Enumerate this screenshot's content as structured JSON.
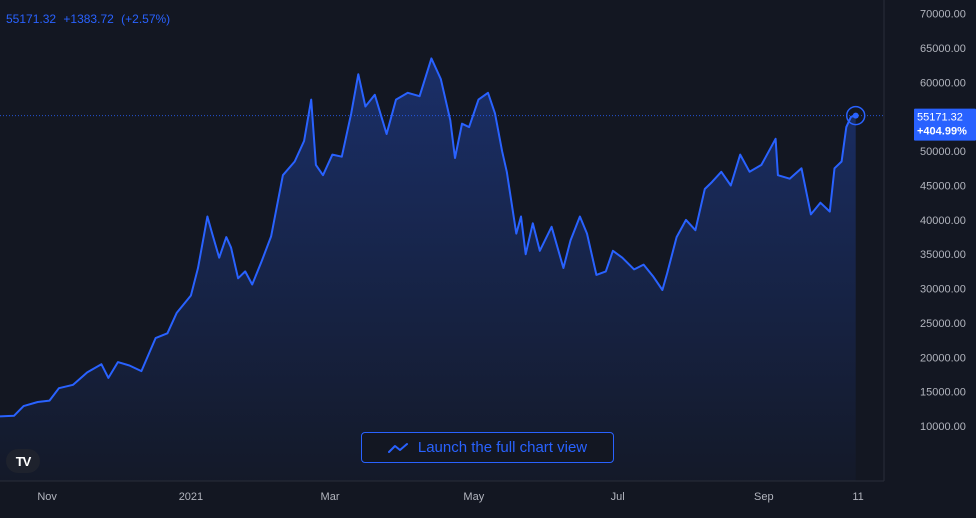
{
  "quote": {
    "price": "55171.32",
    "change": "+1383.72",
    "change_pct": "(+2.57%)"
  },
  "last_badge": {
    "price": "55171.32",
    "pct": "+404.99%"
  },
  "launch_label": "Launch the full chart view",
  "colors": {
    "line": "#2962ff",
    "background": "#131722",
    "text": "#b2b5be",
    "badge": "#2962ff"
  },
  "chart_data": {
    "type": "area",
    "title": "",
    "xlabel": "",
    "ylabel": "",
    "ylim": [
      2000,
      72000
    ],
    "y_ticks": [
      "70000.00",
      "65000.00",
      "60000.00",
      "55000.00",
      "50000.00",
      "45000.00",
      "40000.00",
      "35000.00",
      "30000.00",
      "25000.00",
      "20000.00",
      "15000.00",
      "10000.00"
    ],
    "y_tick_values": [
      70000,
      65000,
      60000,
      55000,
      50000,
      45000,
      40000,
      35000,
      30000,
      25000,
      20000,
      15000,
      10000
    ],
    "x_ticks": [
      "Nov",
      "2021",
      "Mar",
      "May",
      "Jul",
      "Sep",
      "11"
    ],
    "x_tick_dates": [
      "2020-11-01",
      "2021-01-01",
      "2021-03-01",
      "2021-05-01",
      "2021-07-01",
      "2021-09-01",
      "2021-10-11"
    ],
    "x_range": [
      "2020-10-12",
      "2021-10-22"
    ],
    "series": [
      {
        "points": [
          [
            "2020-10-12",
            11400
          ],
          [
            "2020-10-18",
            11500
          ],
          [
            "2020-10-22",
            12900
          ],
          [
            "2020-10-28",
            13500
          ],
          [
            "2020-11-02",
            13700
          ],
          [
            "2020-11-06",
            15500
          ],
          [
            "2020-11-12",
            16000
          ],
          [
            "2020-11-18",
            17800
          ],
          [
            "2020-11-24",
            19000
          ],
          [
            "2020-11-27",
            17000
          ],
          [
            "2020-12-01",
            19300
          ],
          [
            "2020-12-06",
            18800
          ],
          [
            "2020-12-11",
            18000
          ],
          [
            "2020-12-17",
            22800
          ],
          [
            "2020-12-22",
            23500
          ],
          [
            "2020-12-26",
            26500
          ],
          [
            "2021-01-01",
            29000
          ],
          [
            "2021-01-04",
            33000
          ],
          [
            "2021-01-08",
            40500
          ],
          [
            "2021-01-10",
            38000
          ],
          [
            "2021-01-13",
            34500
          ],
          [
            "2021-01-16",
            37500
          ],
          [
            "2021-01-18",
            36000
          ],
          [
            "2021-01-21",
            31500
          ],
          [
            "2021-01-24",
            32500
          ],
          [
            "2021-01-27",
            30600
          ],
          [
            "2021-01-31",
            34000
          ],
          [
            "2021-02-04",
            37600
          ],
          [
            "2021-02-09",
            46500
          ],
          [
            "2021-02-14",
            48500
          ],
          [
            "2021-02-18",
            51500
          ],
          [
            "2021-02-21",
            57500
          ],
          [
            "2021-02-23",
            48000
          ],
          [
            "2021-02-26",
            46500
          ],
          [
            "2021-03-02",
            49500
          ],
          [
            "2021-03-06",
            49200
          ],
          [
            "2021-03-10",
            55500
          ],
          [
            "2021-03-13",
            61200
          ],
          [
            "2021-03-16",
            56500
          ],
          [
            "2021-03-20",
            58200
          ],
          [
            "2021-03-25",
            52500
          ],
          [
            "2021-03-29",
            57500
          ],
          [
            "2021-04-03",
            58500
          ],
          [
            "2021-04-08",
            58000
          ],
          [
            "2021-04-13",
            63500
          ],
          [
            "2021-04-17",
            60500
          ],
          [
            "2021-04-21",
            54500
          ],
          [
            "2021-04-23",
            49000
          ],
          [
            "2021-04-26",
            54000
          ],
          [
            "2021-04-29",
            53500
          ],
          [
            "2021-05-03",
            57500
          ],
          [
            "2021-05-07",
            58500
          ],
          [
            "2021-05-10",
            55500
          ],
          [
            "2021-05-13",
            50000
          ],
          [
            "2021-05-15",
            47000
          ],
          [
            "2021-05-19",
            38000
          ],
          [
            "2021-05-21",
            40500
          ],
          [
            "2021-05-23",
            35000
          ],
          [
            "2021-05-26",
            39500
          ],
          [
            "2021-05-29",
            35500
          ],
          [
            "2021-06-03",
            39000
          ],
          [
            "2021-06-08",
            33000
          ],
          [
            "2021-06-11",
            37000
          ],
          [
            "2021-06-15",
            40500
          ],
          [
            "2021-06-18",
            38000
          ],
          [
            "2021-06-22",
            32000
          ],
          [
            "2021-06-26",
            32500
          ],
          [
            "2021-06-29",
            35500
          ],
          [
            "2021-07-03",
            34500
          ],
          [
            "2021-07-08",
            32800
          ],
          [
            "2021-07-12",
            33500
          ],
          [
            "2021-07-16",
            31800
          ],
          [
            "2021-07-20",
            29800
          ],
          [
            "2021-07-22",
            32200
          ],
          [
            "2021-07-26",
            37500
          ],
          [
            "2021-07-30",
            40000
          ],
          [
            "2021-08-03",
            38500
          ],
          [
            "2021-08-07",
            44500
          ],
          [
            "2021-08-10",
            45500
          ],
          [
            "2021-08-14",
            47000
          ],
          [
            "2021-08-18",
            45000
          ],
          [
            "2021-08-22",
            49500
          ],
          [
            "2021-08-26",
            47000
          ],
          [
            "2021-08-31",
            48000
          ],
          [
            "2021-09-06",
            51800
          ],
          [
            "2021-09-07",
            46500
          ],
          [
            "2021-09-12",
            46000
          ],
          [
            "2021-09-17",
            47500
          ],
          [
            "2021-09-21",
            40800
          ],
          [
            "2021-09-25",
            42500
          ],
          [
            "2021-09-29",
            41200
          ],
          [
            "2021-10-01",
            47500
          ],
          [
            "2021-10-04",
            48500
          ],
          [
            "2021-10-06",
            53500
          ],
          [
            "2021-10-08",
            55000
          ],
          [
            "2021-10-10",
            55171
          ]
        ]
      }
    ]
  }
}
